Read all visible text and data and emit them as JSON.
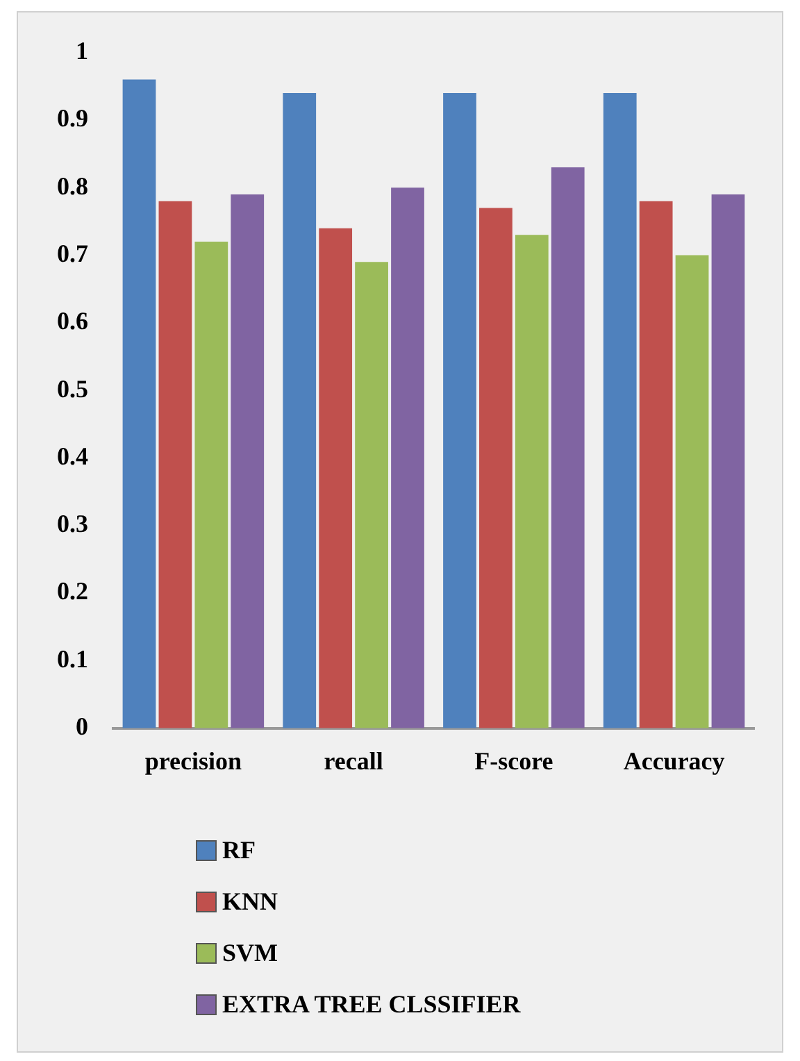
{
  "chart_data": {
    "type": "bar",
    "categories": [
      "precision",
      "recall",
      "F-score",
      "Accuracy"
    ],
    "series": [
      {
        "name": "RF",
        "color": "#4f81bd",
        "values": [
          0.96,
          0.94,
          0.94,
          0.94
        ]
      },
      {
        "name": "KNN",
        "color": "#c0504d",
        "values": [
          0.78,
          0.74,
          0.77,
          0.78
        ]
      },
      {
        "name": "SVM",
        "color": "#9bbb59",
        "values": [
          0.72,
          0.69,
          0.73,
          0.7
        ]
      },
      {
        "name": "EXTRA TREE CLSSIFIER",
        "color": "#8064a2",
        "values": [
          0.79,
          0.8,
          0.83,
          0.79
        ]
      }
    ],
    "ylim": [
      0,
      1
    ],
    "yticks": [
      0,
      0.1,
      0.2,
      0.3,
      0.4,
      0.5,
      0.6,
      0.7,
      0.8,
      0.9,
      1
    ],
    "grid": false,
    "legend": "bottom"
  }
}
